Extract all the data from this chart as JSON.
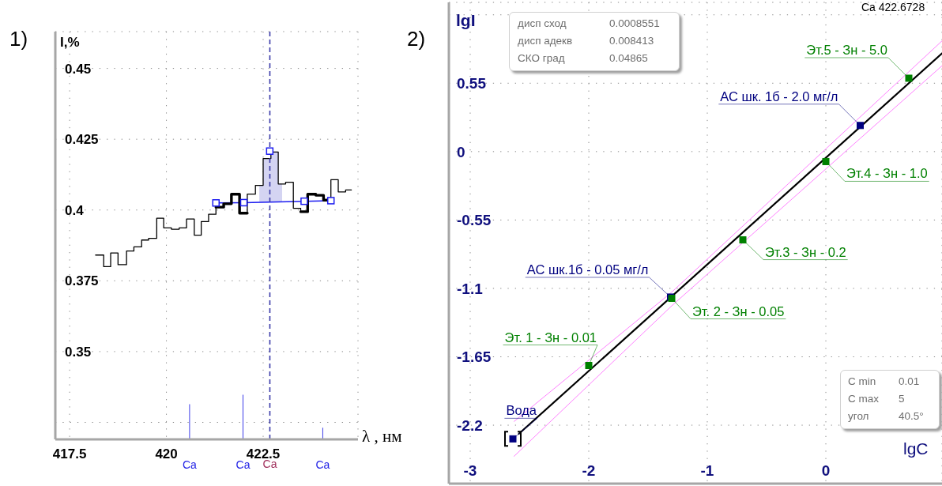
{
  "chart_data": [
    {
      "type": "step",
      "title": "1)",
      "xlabel": "λ , нм",
      "ylabel": "I,%",
      "x": [
        418.17,
        418.38,
        418.56,
        418.75,
        418.97,
        419.16,
        419.36,
        419.54,
        419.75,
        419.93,
        420.13,
        420.33,
        420.52,
        420.72,
        420.9,
        421.09,
        421.28,
        421.48,
        421.68,
        421.89,
        422.09,
        422.3,
        422.4,
        422.5,
        422.7,
        422.89,
        422.99,
        423.08,
        423.28,
        423.47,
        423.65,
        423.86,
        424.06,
        424.25,
        424.44,
        424.63,
        424.78
      ],
      "series": [
        {
          "type": "bar",
          "color": "#2323e6",
          "x": [
            420.6,
            421.98,
            424.04
          ],
          "values": [
            0.3314,
            0.3348,
            0.3231
          ]
        },
        {
          "type": "line",
          "color": "#1c1cf0",
          "x": [
            421.28,
            422.0,
            423.56,
            424.25
          ],
          "values": [
            0.4025,
            0.4026,
            0.4031,
            0.4033
          ],
          "marker": "square"
        },
        {
          "color": "#000000",
          "values": [
            0.3841,
            0.38,
            0.3848,
            0.3807,
            0.3855,
            0.387,
            0.3894,
            0.39,
            0.3971,
            0.3937,
            0.3932,
            0.3937,
            0.3968,
            0.3911,
            0.3959,
            0.3985,
            0.401,
            0.4022,
            0.4056,
            0.3989,
            0.4056,
            0.4087,
            0.4087,
            0.4182,
            0.4205,
            0.4092,
            0.4092,
            0.4098,
            0.4006,
            0.3994,
            0.4056,
            0.4052,
            0.4035,
            0.4107,
            0.4064,
            0.4071,
            0.4071
          ],
          "lower": [
            null,
            null,
            null,
            null,
            null,
            null,
            null,
            null,
            null,
            null,
            null,
            null,
            null,
            null,
            null,
            null,
            null,
            null,
            null,
            null,
            null,
            null,
            0.4028,
            0.4028,
            0.4029,
            0.4029,
            0.403,
            null,
            null,
            null,
            null,
            null,
            null,
            null,
            null,
            null,
            null
          ],
          "upper": [
            null,
            null,
            null,
            null,
            null,
            null,
            null,
            null,
            null,
            null,
            null,
            null,
            null,
            null,
            null,
            null,
            null,
            null,
            null,
            null,
            null,
            null,
            0.4087,
            0.4182,
            0.4205,
            0.4092,
            0.4092,
            null,
            null,
            null,
            null,
            null,
            null,
            null,
            null,
            null,
            null
          ]
        },
        {
          "color": "#000000",
          "x": [
            421.28,
            421.48,
            421.68,
            421.89,
            422.09,
            422.3,
            423.47,
            423.65,
            423.86,
            424.06,
            424.25
          ],
          "values": [
            0.401,
            0.4022,
            0.4056,
            0.3989,
            0.3989,
            null,
            0.3994,
            0.4056,
            0.4052,
            0.4035,
            0.4035
          ]
        },
        {
          "type": "scatter",
          "color": "#1c1cf0",
          "x": [
            422.67
          ],
          "values": [
            0.4208
          ],
          "marker": "square"
        }
      ],
      "xlim": [
        417.13,
        424.95
      ],
      "xticks": [
        417.5,
        420,
        422.5
      ],
      "ylim": [
        0.319,
        0.463
      ],
      "yticks": [
        0.45,
        0.425,
        0.4,
        0.375,
        0.35,
        {
          "value": 0.325,
          "label": null
        }
      ],
      "grid": true,
      "ref_lines": [
        {
          "axis": "x",
          "value": 422.6728,
          "label": "Ca",
          "color": "#3a3aa8",
          "line_style": "dashed"
        }
      ],
      "annotations": [
        {
          "text": "Ca",
          "x": 420.6,
          "y": 0.319
        },
        {
          "text": "Ca",
          "x": 421.98,
          "y": 0.319
        },
        {
          "text": "Ca",
          "x": 424.04,
          "y": 0.319
        }
      ]
    },
    {
      "type": "scatter",
      "title": "2)",
      "xlabel": "lgC",
      "ylabel": "lgI",
      "series": [
        {
          "type": "line",
          "color": "#ff80ff",
          "x": [
            -2.63,
            -1.3,
            0.98
          ],
          "values": [
            -2.17,
            -1.13,
            0.89
          ]
        },
        {
          "type": "line",
          "color": "#ff80ff",
          "x": [
            -2.63,
            -1.3,
            0.98
          ],
          "values": [
            -2.45,
            -1.24,
            0.69
          ]
        },
        {
          "type": "line",
          "color": "#000000",
          "x": [
            -2.59,
            0.98
          ],
          "values": [
            -2.27,
            0.79
          ]
        },
        {
          "color": "#000080",
          "x": [
            -2.64,
            -1.31,
            0.29
          ],
          "values": [
            -2.31,
            -1.17,
            0.21
          ],
          "marker": "square"
        },
        {
          "color": "#008000",
          "x": [
            -2.0,
            -1.3,
            -0.7,
            0.0,
            0.7
          ],
          "values": [
            -1.72,
            -1.18,
            -0.71,
            -0.08,
            0.59
          ],
          "marker": "square"
        }
      ],
      "xlim": [
        -3.18,
        0.98
      ],
      "xticks": [
        -3,
        -2,
        -1,
        0
      ],
      "ylim": [
        -2.67,
        1.2
      ],
      "yticks": [
        {
          "value": 1.1,
          "label": null
        },
        0.55,
        0,
        -0.55,
        -1.1,
        -1.65,
        -2.2
      ],
      "grid": true,
      "annotations": [
        "Ca 422.6728",
        "дисп сход\t0.0008551\nдисп адекв\t0.008413\nСКО град\t0.04865",
        "C min\t0.01\nC max\t5\nугол\t40.5°",
        {
          "text": "Эт. 1 - Зн - 0.01",
          "x": -2.0,
          "y": -1.72
        },
        {
          "text": "Эт. 2 - Зн - 0.05",
          "x": -1.3,
          "y": -1.18
        },
        {
          "text": "Эт.3 - Зн - 0.2",
          "x": -0.7,
          "y": -0.71
        },
        {
          "text": "Эт.4 - Зн - 1.0",
          "x": 0.0,
          "y": -0.08
        },
        {
          "text": "Эт.5 - Зн - 5.0",
          "x": 0.7,
          "y": 0.59
        },
        {
          "text": "АС шк. 1б - 2.0 мг/л",
          "x": 0.29,
          "y": 0.21
        },
        {
          "text": "АС шк.1б - 0.05 мг/л",
          "x": -1.31,
          "y": -1.17
        },
        {
          "text": "Вода",
          "x": -2.64,
          "y": -2.31
        }
      ]
    }
  ]
}
